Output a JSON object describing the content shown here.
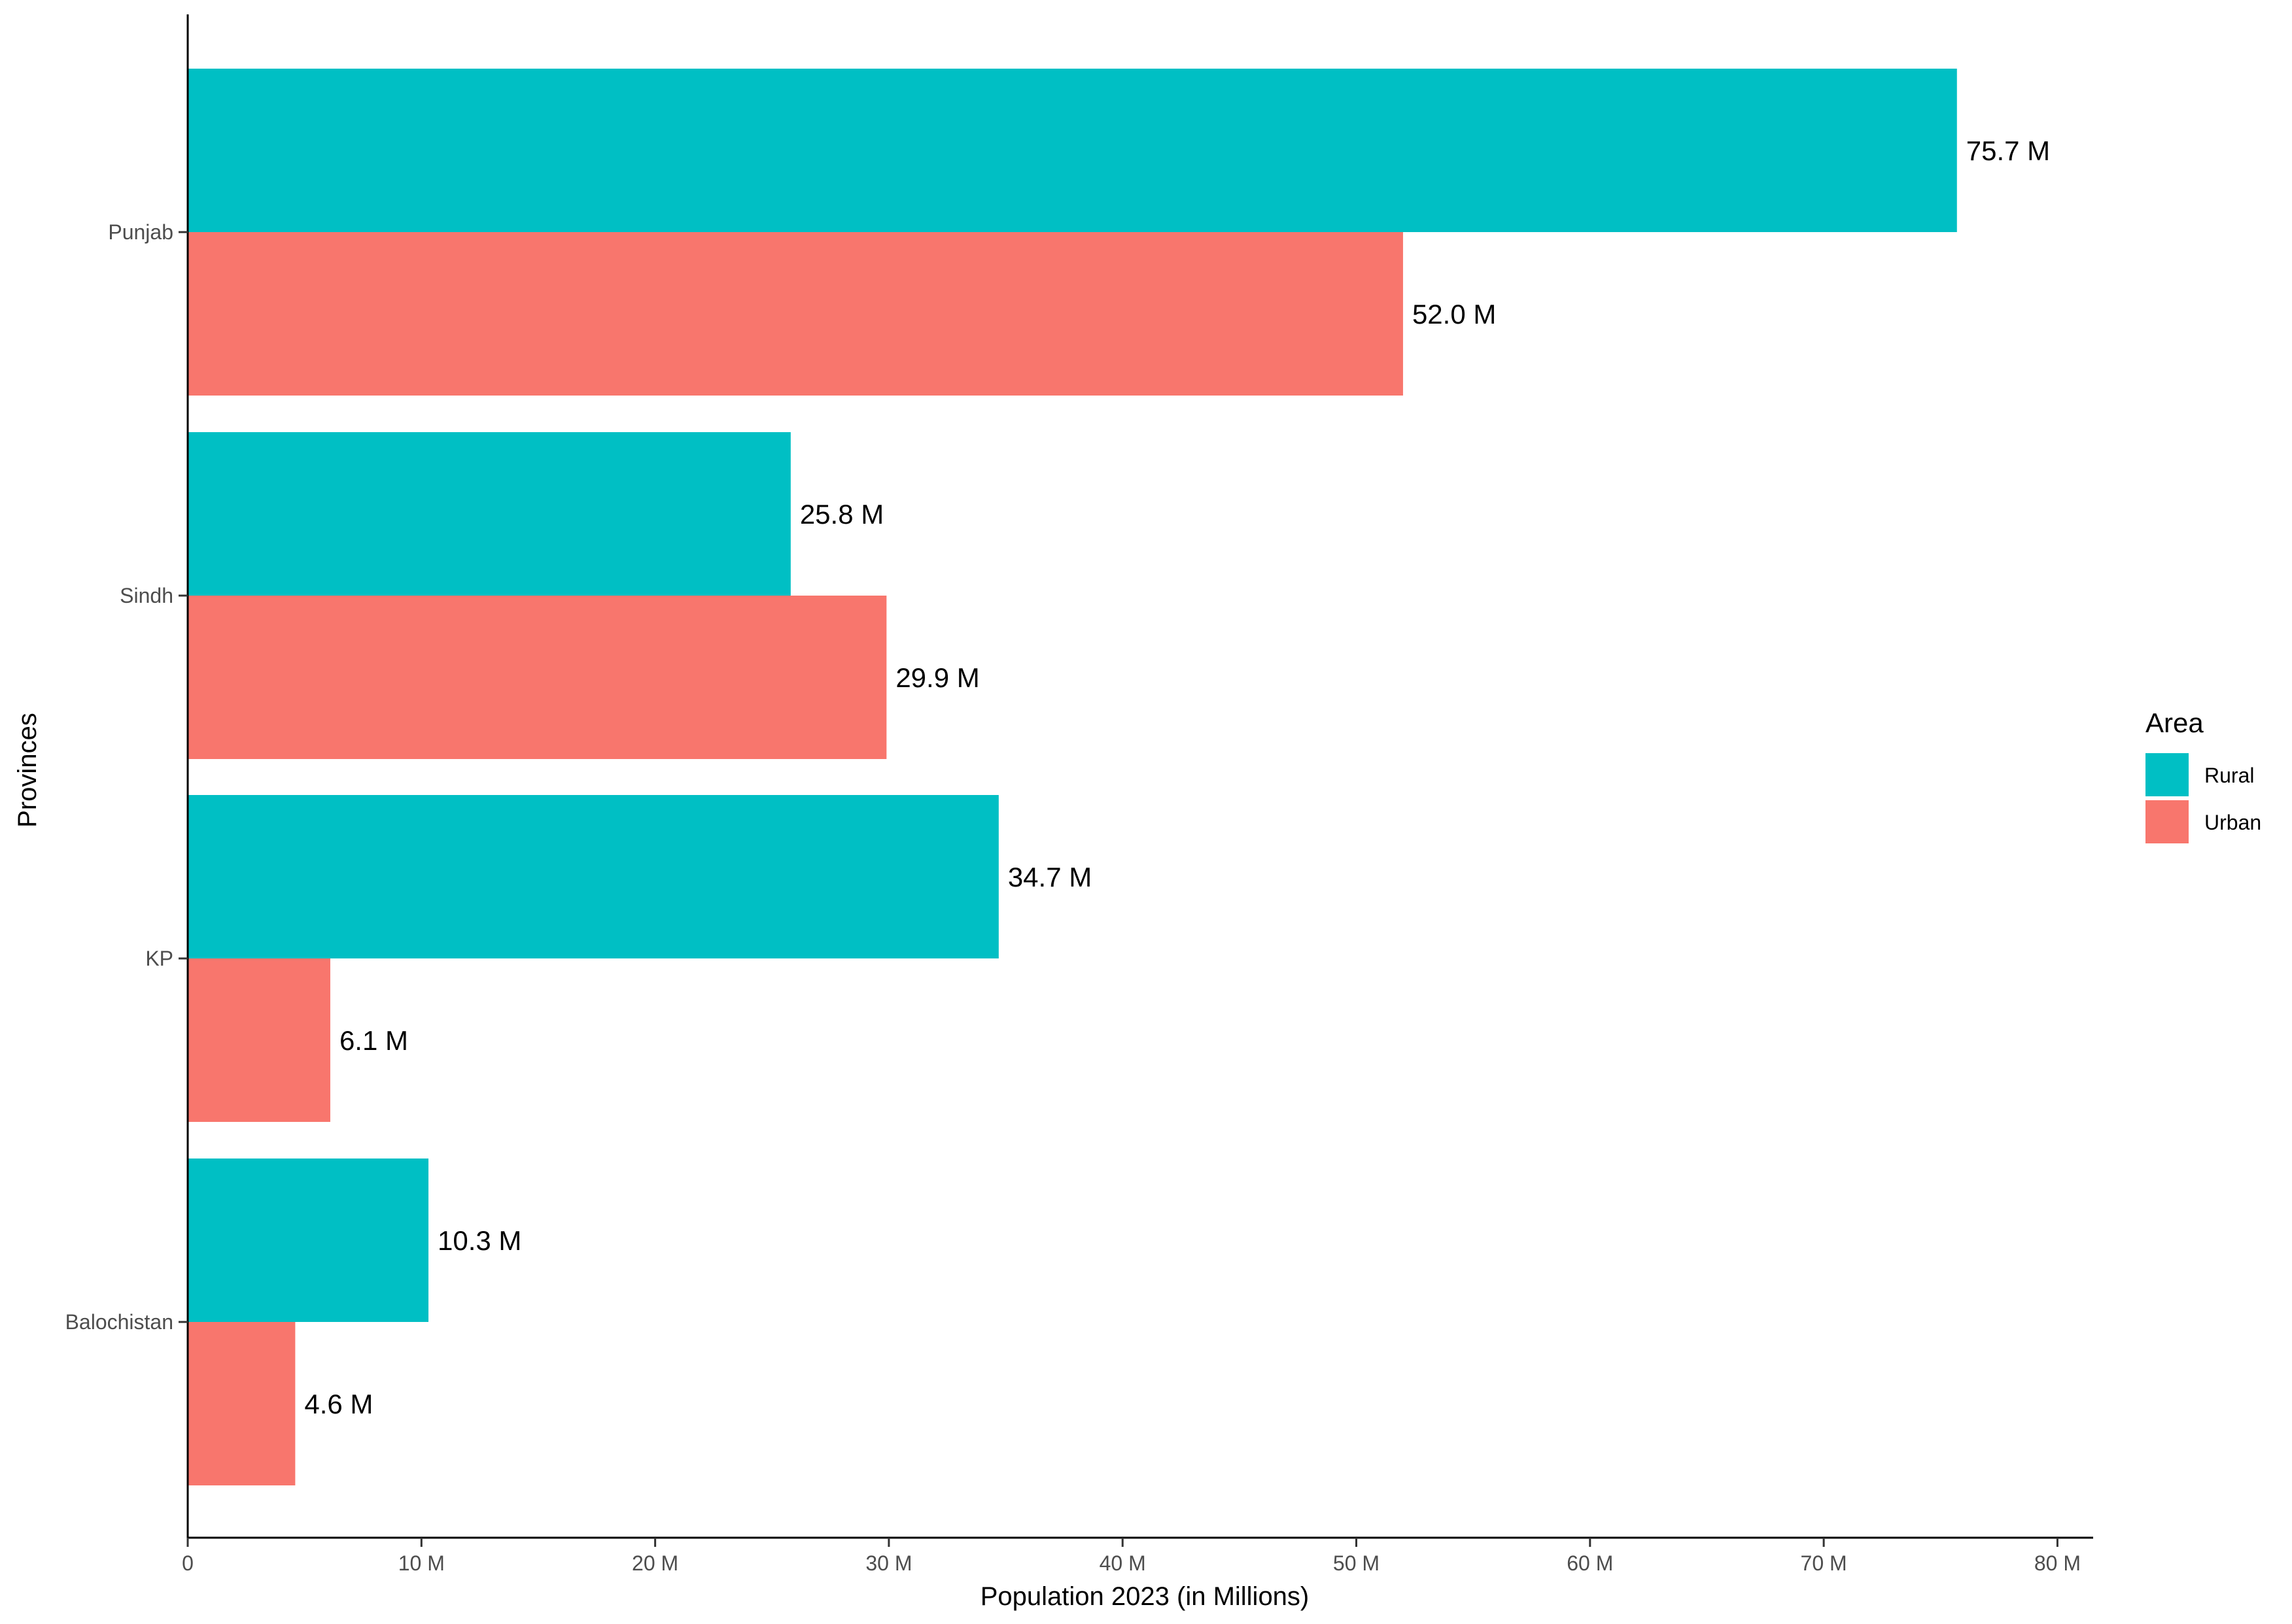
{
  "chart_data": {
    "type": "bar",
    "orientation": "horizontal",
    "categories": [
      "Punjab",
      "Sindh",
      "KP",
      "Balochistan"
    ],
    "series": [
      {
        "name": "Rural",
        "values": [
          75.7,
          25.8,
          34.7,
          10.3
        ],
        "labels": [
          "75.7 M",
          "25.8 M",
          "34.7 M",
          "10.3 M"
        ],
        "color": "#00BFC4"
      },
      {
        "name": "Urban",
        "values": [
          52.0,
          29.9,
          6.1,
          4.6
        ],
        "labels": [
          "52.0 M",
          "29.9 M",
          "6.1 M",
          "4.6 M"
        ],
        "color": "#F8766D"
      }
    ],
    "xlabel": "Population 2023 (in Millions)",
    "ylabel": "Provinces",
    "xlim": [
      0,
      82
    ],
    "xticks": [
      0,
      10,
      20,
      30,
      40,
      50,
      60,
      70,
      80
    ],
    "xtick_labels": [
      "0",
      "10 M",
      "20 M",
      "30 M",
      "40 M",
      "50 M",
      "60 M",
      "70 M",
      "80 M"
    ],
    "grid": false,
    "legend": {
      "title": "Area",
      "placement": "right",
      "entries": [
        "Rural",
        "Urban"
      ]
    }
  }
}
